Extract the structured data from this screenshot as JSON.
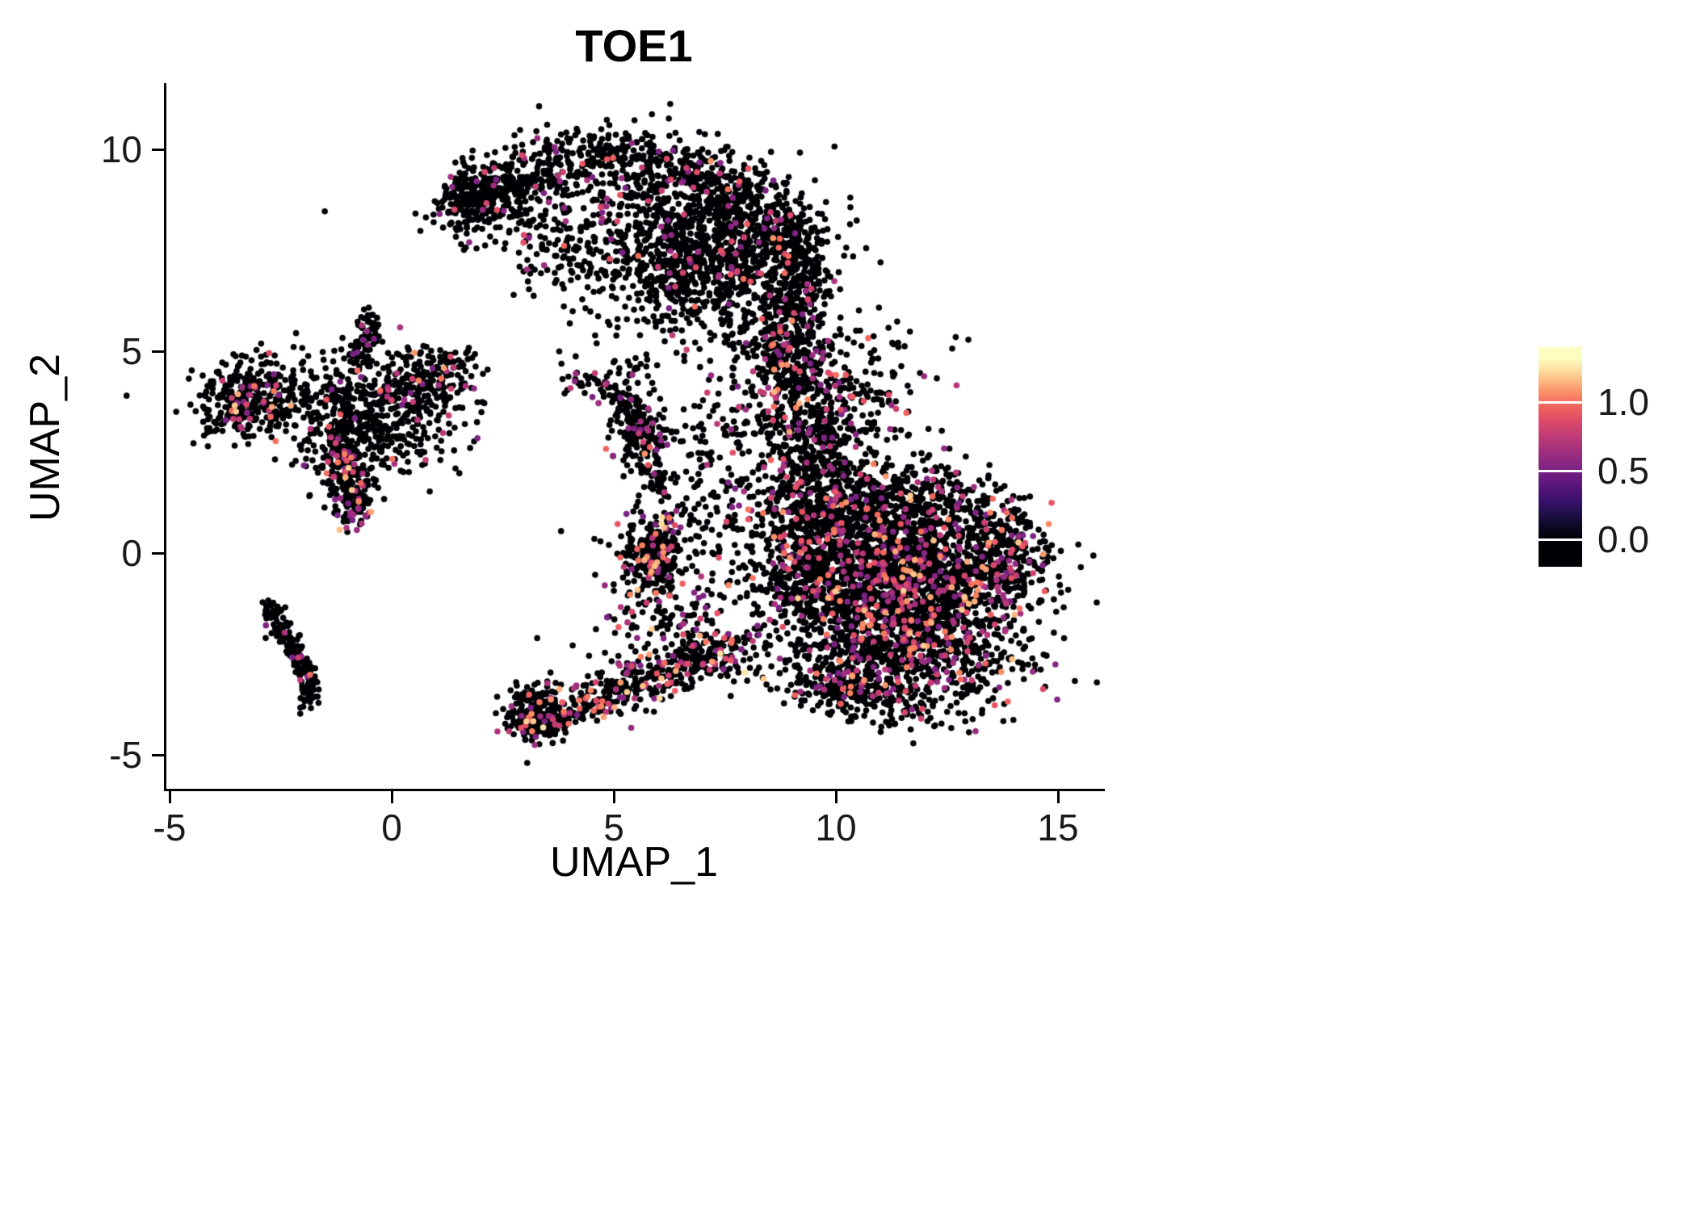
{
  "chart_data": {
    "type": "scatter",
    "title": "TOE1",
    "xlabel": "UMAP_1",
    "ylabel": "UMAP_2",
    "xlim": [
      -6.1,
      16.1
    ],
    "ylim": [
      -5.8,
      11.6
    ],
    "grid": false,
    "background": "#ffffff",
    "x_ticks": [
      {
        "label": "-5",
        "value": -5
      },
      {
        "label": "0",
        "value": 0
      },
      {
        "label": "5",
        "value": 5
      },
      {
        "label": "10",
        "value": 10
      },
      {
        "label": "15",
        "value": 15
      }
    ],
    "y_ticks": [
      {
        "label": "10",
        "value": 10
      },
      {
        "label": "5",
        "value": 5
      },
      {
        "label": "0",
        "value": 0
      },
      {
        "label": "-5",
        "value": -5
      }
    ],
    "colorbar": {
      "position": "right",
      "value_min": -0.2,
      "value_max": 1.4,
      "point_value_max": 1.3,
      "labels": [
        {
          "text": "1.0",
          "value": 1.0
        },
        {
          "text": "0.5",
          "value": 0.5
        },
        {
          "text": "0.0",
          "value": 0.0
        }
      ]
    },
    "colormap_stops": [
      [
        0.0,
        "#000004"
      ],
      [
        0.1,
        "#120d31"
      ],
      [
        0.2,
        "#331067"
      ],
      [
        0.3,
        "#59157e"
      ],
      [
        0.4,
        "#7e2482"
      ],
      [
        0.5,
        "#a3307e"
      ],
      [
        0.6,
        "#c83e73"
      ],
      [
        0.7,
        "#e95462"
      ],
      [
        0.8,
        "#fa7d5e"
      ],
      [
        0.9,
        "#fec287"
      ],
      [
        1.0,
        "#fcfdbf"
      ]
    ],
    "point_radius_px": 3.8,
    "random_seed": 1337,
    "clusters": [
      {
        "name": "top-band",
        "kind": "path",
        "pts": [
          [
            1.4,
            8.55
          ],
          [
            2.0,
            9.0
          ],
          [
            2.8,
            9.4
          ],
          [
            3.7,
            9.7
          ],
          [
            4.6,
            9.85
          ],
          [
            5.5,
            9.75
          ],
          [
            6.4,
            9.5
          ],
          [
            7.3,
            9.15
          ],
          [
            8.1,
            8.75
          ]
        ],
        "jitter": 0.38,
        "n": 650,
        "p": 0.06,
        "lo": 0.5,
        "hi": 1.1
      },
      {
        "name": "top-left-tip",
        "kind": "gauss",
        "cx": 1.9,
        "cy": 8.85,
        "sx": 0.45,
        "sy": 0.35,
        "rot": 35,
        "n": 160,
        "p": 0.05,
        "lo": 0.5,
        "hi": 1.0
      },
      {
        "name": "top-interior",
        "kind": "gauss",
        "cx": 5.3,
        "cy": 8.35,
        "sx": 1.7,
        "sy": 0.75,
        "rot": -8,
        "n": 300,
        "p": 0.05,
        "lo": 0.5,
        "hi": 1.0
      },
      {
        "name": "top-right-lobe",
        "kind": "gauss",
        "cx": 7.7,
        "cy": 7.7,
        "sx": 1.05,
        "sy": 0.95,
        "rot": -30,
        "n": 750,
        "p": 0.07,
        "lo": 0.5,
        "hi": 1.1
      },
      {
        "name": "top-mid-lower",
        "kind": "gauss",
        "cx": 6.3,
        "cy": 6.9,
        "sx": 1.0,
        "sy": 0.8,
        "rot": -20,
        "n": 350,
        "p": 0.06,
        "lo": 0.5,
        "hi": 1.0
      },
      {
        "name": "top-sparse-left-under",
        "kind": "gauss",
        "cx": 3.6,
        "cy": 7.9,
        "sx": 1.1,
        "sy": 0.55,
        "rot": -15,
        "n": 90,
        "p": 0.05,
        "lo": 0.5,
        "hi": 1.0
      },
      {
        "name": "arc-under-scatter",
        "kind": "gauss",
        "cx": 3.9,
        "cy": 7.0,
        "sx": 0.7,
        "sy": 0.5,
        "rot": 0,
        "n": 40,
        "p": 0.05,
        "lo": 0.5,
        "hi": 1.0
      },
      {
        "name": "right-descender",
        "kind": "path",
        "pts": [
          [
            8.6,
            8.4
          ],
          [
            9.0,
            7.8
          ],
          [
            9.2,
            7.1
          ],
          [
            9.25,
            6.4
          ],
          [
            9.0,
            5.8
          ]
        ],
        "jitter": 0.3,
        "n": 260,
        "p": 0.08,
        "lo": 0.5,
        "hi": 1.0
      },
      {
        "name": "left-west-blob",
        "kind": "gauss",
        "cx": -3.25,
        "cy": 3.8,
        "sx": 0.6,
        "sy": 0.5,
        "rot": 20,
        "n": 330,
        "p": 0.09,
        "lo": 0.5,
        "hi": 1.2
      },
      {
        "name": "left-main",
        "kind": "gauss",
        "cx": -0.7,
        "cy": 3.6,
        "sx": 0.95,
        "sy": 0.7,
        "rot": 10,
        "n": 520,
        "p": 0.07,
        "lo": 0.5,
        "hi": 1.1
      },
      {
        "name": "left-top-spur",
        "kind": "path",
        "pts": [
          [
            -0.75,
            4.6
          ],
          [
            -0.6,
            5.2
          ],
          [
            -0.5,
            5.85
          ]
        ],
        "jitter": 0.16,
        "n": 80,
        "p": 0.04,
        "lo": 0.5,
        "hi": 0.9
      },
      {
        "name": "left-right-spur",
        "kind": "gauss",
        "cx": 0.95,
        "cy": 4.35,
        "sx": 0.5,
        "sy": 0.35,
        "rot": 15,
        "n": 150,
        "p": 0.12,
        "lo": 0.5,
        "hi": 1.2
      },
      {
        "name": "left-tail",
        "kind": "path",
        "pts": [
          [
            -1.15,
            2.7
          ],
          [
            -1.0,
            2.0
          ],
          [
            -0.85,
            1.4
          ],
          [
            -0.9,
            0.9
          ]
        ],
        "jitter": 0.26,
        "n": 240,
        "p": 0.18,
        "lo": 0.5,
        "hi": 1.2
      },
      {
        "name": "left-scatter",
        "kind": "gauss",
        "cx": 0.2,
        "cy": 2.9,
        "sx": 0.8,
        "sy": 0.6,
        "rot": 0,
        "n": 90,
        "p": 0.06,
        "lo": 0.5,
        "hi": 1.0
      },
      {
        "name": "left-hook",
        "kind": "path",
        "pts": [
          [
            -2.75,
            -1.25
          ],
          [
            -2.55,
            -1.8
          ],
          [
            -2.3,
            -2.3
          ],
          [
            -2.0,
            -2.85
          ],
          [
            -1.85,
            -3.35
          ],
          [
            -1.95,
            -3.8
          ]
        ],
        "jitter": 0.12,
        "n": 170,
        "p": 0.03,
        "lo": 0.5,
        "hi": 1.0
      },
      {
        "name": "center-blob",
        "kind": "gauss",
        "cx": 5.6,
        "cy": 2.95,
        "sx": 0.32,
        "sy": 0.45,
        "rot": 0,
        "n": 170,
        "p": 0.1,
        "lo": 0.5,
        "hi": 1.1
      },
      {
        "name": "center-arm",
        "kind": "path",
        "pts": [
          [
            5.45,
            3.5
          ],
          [
            5.0,
            3.9
          ],
          [
            4.5,
            4.2
          ],
          [
            4.0,
            4.35
          ]
        ],
        "jitter": 0.14,
        "n": 70,
        "p": 0.05,
        "lo": 0.5,
        "hi": 0.9
      },
      {
        "name": "center-top-dots",
        "kind": "gauss",
        "cx": 5.35,
        "cy": 4.45,
        "sx": 0.3,
        "sy": 0.15,
        "rot": 0,
        "n": 25,
        "p": 0.05,
        "lo": 0.5,
        "hi": 0.9
      },
      {
        "name": "center-trail",
        "kind": "path",
        "pts": [
          [
            5.75,
            2.4
          ],
          [
            5.95,
            1.9
          ],
          [
            6.1,
            1.4
          ]
        ],
        "jitter": 0.18,
        "n": 40,
        "p": 0.1,
        "lo": 0.5,
        "hi": 1.0
      },
      {
        "name": "gap-dots",
        "kind": "gauss",
        "cx": 4.8,
        "cy": 5.6,
        "sx": 0.5,
        "sy": 0.4,
        "rot": 0,
        "n": 14,
        "p": 0.05,
        "lo": 0.5,
        "hi": 0.9
      },
      {
        "name": "mid-blob",
        "kind": "gauss",
        "cx": 5.85,
        "cy": -0.05,
        "sx": 0.3,
        "sy": 0.42,
        "rot": 0,
        "n": 280,
        "p": 0.12,
        "lo": 0.5,
        "hi": 1.25
      },
      {
        "name": "mid-blob-halo",
        "kind": "gauss",
        "cx": 5.9,
        "cy": -0.2,
        "sx": 0.6,
        "sy": 0.8,
        "rot": 0,
        "n": 70,
        "p": 0.12,
        "lo": 0.5,
        "hi": 1.1
      },
      {
        "name": "bridge-column",
        "kind": "path",
        "pts": [
          [
            8.85,
            5.6
          ],
          [
            9.0,
            4.9
          ],
          [
            9.2,
            4.2
          ],
          [
            9.5,
            3.5
          ],
          [
            9.7,
            2.8
          ],
          [
            9.8,
            2.2
          ]
        ],
        "jitter": 0.5,
        "n": 480,
        "p": 0.14,
        "lo": 0.5,
        "hi": 1.15
      },
      {
        "name": "bridge-left-scatter",
        "kind": "gauss",
        "cx": 8.2,
        "cy": 3.0,
        "sx": 0.7,
        "sy": 1.0,
        "rot": 0,
        "n": 140,
        "p": 0.1,
        "lo": 0.5,
        "hi": 1.0
      },
      {
        "name": "bridge-right-scatter",
        "kind": "gauss",
        "cx": 10.6,
        "cy": 3.9,
        "sx": 0.8,
        "sy": 0.9,
        "rot": -30,
        "n": 150,
        "p": 0.08,
        "lo": 0.5,
        "hi": 1.0
      },
      {
        "name": "bridge-neck",
        "kind": "gauss",
        "cx": 9.0,
        "cy": 5.3,
        "sx": 0.45,
        "sy": 0.6,
        "rot": 0,
        "n": 90,
        "p": 0.06,
        "lo": 0.5,
        "hi": 1.0
      },
      {
        "name": "col-sparse-left",
        "kind": "gauss",
        "cx": 6.95,
        "cy": 2.2,
        "sx": 0.25,
        "sy": 0.8,
        "rot": 0,
        "n": 35,
        "p": 0.08,
        "lo": 0.5,
        "hi": 1.0
      },
      {
        "name": "right-core",
        "kind": "gauss",
        "cx": 11.4,
        "cy": -0.8,
        "sx": 1.45,
        "sy": 1.05,
        "rot": -12,
        "n": 2100,
        "p": 0.17,
        "lo": 0.5,
        "hi": 1.2
      },
      {
        "name": "right-tip",
        "kind": "gauss",
        "cx": 13.7,
        "cy": 0.1,
        "sx": 0.55,
        "sy": 0.65,
        "rot": 25,
        "n": 280,
        "p": 0.15,
        "lo": 0.5,
        "hi": 1.1
      },
      {
        "name": "right-top-band",
        "kind": "gauss",
        "cx": 10.6,
        "cy": 1.25,
        "sx": 1.15,
        "sy": 0.55,
        "rot": -8,
        "n": 430,
        "p": 0.12,
        "lo": 0.5,
        "hi": 1.1
      },
      {
        "name": "right-left-lobe",
        "kind": "gauss",
        "cx": 9.3,
        "cy": 0.2,
        "sx": 0.7,
        "sy": 1.1,
        "rot": 0,
        "n": 430,
        "p": 0.13,
        "lo": 0.5,
        "hi": 1.15
      },
      {
        "name": "right-bottom",
        "kind": "gauss",
        "cx": 11.3,
        "cy": -2.7,
        "sx": 1.4,
        "sy": 0.65,
        "rot": -6,
        "n": 560,
        "p": 0.15,
        "lo": 0.5,
        "hi": 1.2
      },
      {
        "name": "right-bottom-tip",
        "kind": "gauss",
        "cx": 10.5,
        "cy": -3.5,
        "sx": 0.8,
        "sy": 0.3,
        "rot": -10,
        "n": 160,
        "p": 0.1,
        "lo": 0.5,
        "hi": 1.1
      },
      {
        "name": "right-upper-scatter",
        "kind": "gauss",
        "cx": 12.3,
        "cy": 1.4,
        "sx": 0.9,
        "sy": 0.5,
        "rot": -15,
        "n": 120,
        "p": 0.1,
        "lo": 0.5,
        "hi": 1.0
      },
      {
        "name": "tail-start",
        "kind": "gauss",
        "cx": 3.25,
        "cy": -4.05,
        "sx": 0.35,
        "sy": 0.32,
        "rot": 0,
        "n": 210,
        "p": 0.12,
        "lo": 0.5,
        "hi": 1.2
      },
      {
        "name": "tail-path",
        "kind": "path",
        "pts": [
          [
            3.3,
            -4.1
          ],
          [
            4.0,
            -3.85
          ],
          [
            4.8,
            -3.55
          ],
          [
            5.6,
            -3.2
          ],
          [
            6.4,
            -2.85
          ],
          [
            7.2,
            -2.5
          ],
          [
            7.9,
            -2.2
          ]
        ],
        "jitter": 0.3,
        "n": 430,
        "p": 0.2,
        "lo": 0.5,
        "hi": 1.25
      },
      {
        "name": "tail-upper-scatter",
        "kind": "gauss",
        "cx": 6.2,
        "cy": -1.8,
        "sx": 1.0,
        "sy": 0.7,
        "rot": 10,
        "n": 130,
        "p": 0.15,
        "lo": 0.5,
        "hi": 1.2
      },
      {
        "name": "sparse-mid-left",
        "kind": "gauss",
        "cx": 6.9,
        "cy": 0.6,
        "sx": 0.5,
        "sy": 1.0,
        "rot": 0,
        "n": 50,
        "p": 0.12,
        "lo": 0.5,
        "hi": 1.2
      },
      {
        "name": "sparse-under-arc",
        "kind": "gauss",
        "cx": 8.0,
        "cy": 5.3,
        "sx": 0.6,
        "sy": 0.5,
        "rot": 0,
        "n": 40,
        "p": 0.05,
        "lo": 0.5,
        "hi": 1.0
      }
    ]
  }
}
